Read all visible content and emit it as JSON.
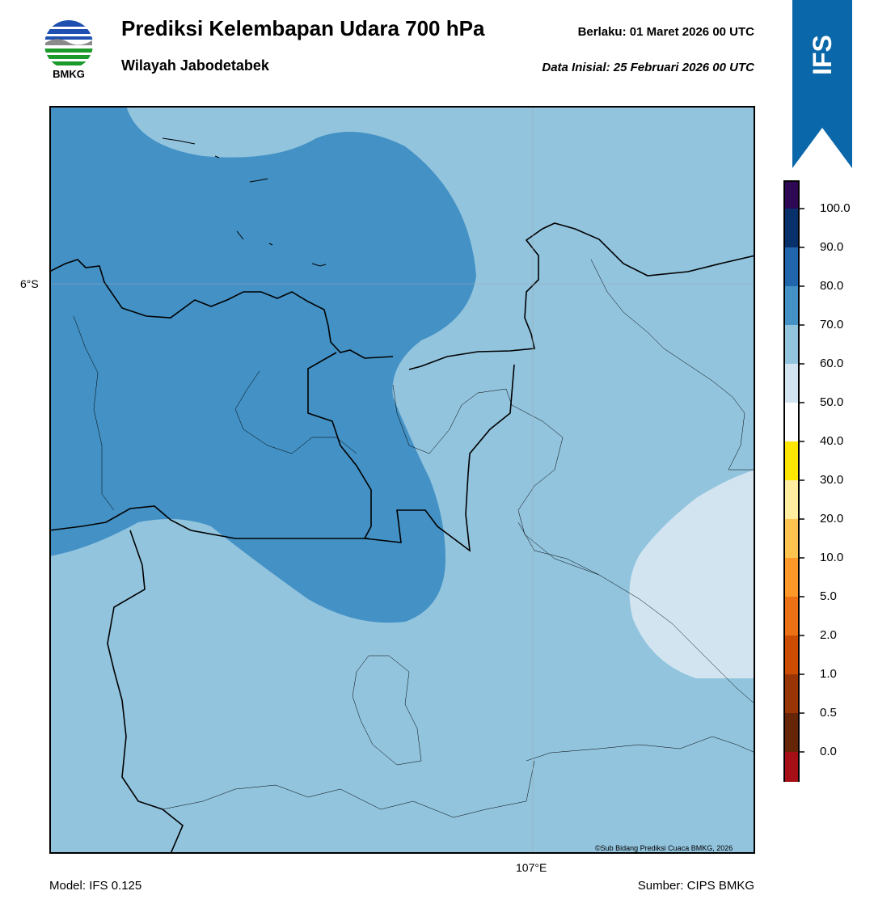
{
  "header": {
    "title": "Prediksi Kelembapan Udara 700 hPa",
    "subtitle": "Wilayah Jabodetabek",
    "valid_time": "Berlaku:  01 Maret 2026 00 UTC",
    "initial_data": "Data Inisial:  25 Februari 2026 00 UTC"
  },
  "logo": {
    "text": "BMKG",
    "icon": "bmkg-logo-icon"
  },
  "badge": {
    "text": "IFS",
    "color": "#0a67a9"
  },
  "map": {
    "lat_label": "6°S",
    "lon_label": "107°E",
    "copyright": "©Sub Bidang Prediksi Cuaca BMKG, 2026",
    "colors": {
      "dark_region": "#4391c5",
      "mid_region": "#92c4de",
      "light_region": "#d1e4f0"
    }
  },
  "colorbar": {
    "labels": [
      "100.0",
      "90.0",
      "80.0",
      "70.0",
      "60.0",
      "50.0",
      "40.0",
      "30.0",
      "20.0",
      "10.0",
      "5.0",
      "2.0",
      "1.0",
      "0.5",
      "0.0"
    ],
    "colors": [
      "#2e0854",
      "#08306b",
      "#2166ac",
      "#4391c5",
      "#92c4de",
      "#d1e4f0",
      "#ffffff",
      "#ffe600",
      "#ffeda0",
      "#fec44f",
      "#fe9929",
      "#ec7014",
      "#cc4c02",
      "#993404",
      "#662506",
      "#a50f15",
      "#e93b2a"
    ]
  },
  "footer": {
    "model": "Model: IFS 0.125",
    "source": "Sumber: CIPS BMKG"
  }
}
